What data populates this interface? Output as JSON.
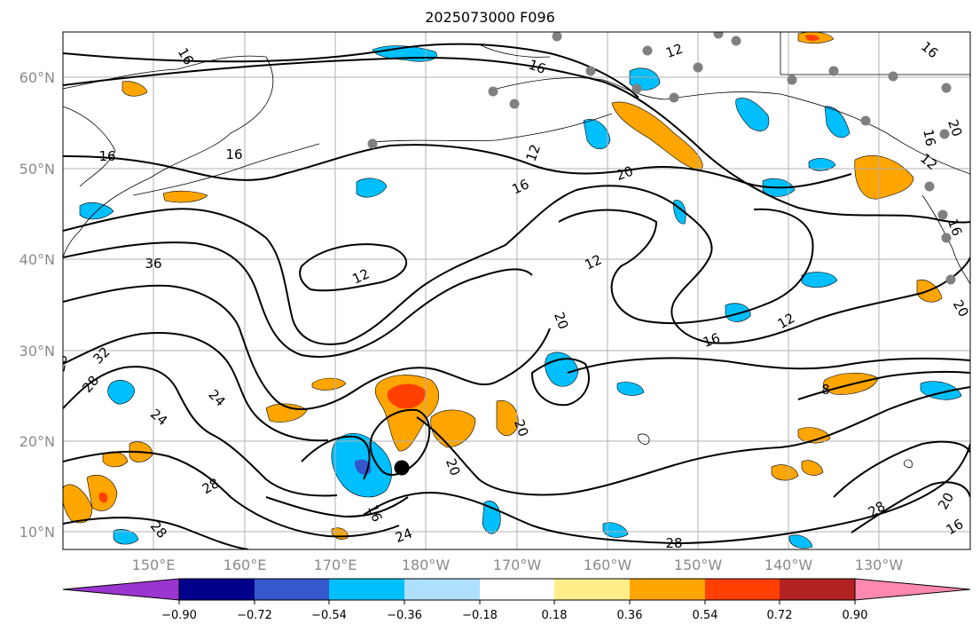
{
  "title": "2025073000 F096",
  "axes": {
    "lat_labels": [
      "60°N",
      "50°N",
      "40°N",
      "30°N",
      "20°N",
      "10°N"
    ],
    "lon_labels": [
      "150°E",
      "160°E",
      "170°E",
      "180°W",
      "170°W",
      "160°W",
      "150°W",
      "140°W",
      "130°W"
    ]
  },
  "colorbar": {
    "ticks": [
      "−0.90",
      "−0.72",
      "−0.54",
      "−0.36",
      "−0.18",
      "0.18",
      "0.36",
      "0.54",
      "0.72",
      "0.90"
    ],
    "colors": [
      "#9a35cf",
      "#00008b",
      "#3558cc",
      "#00bfff",
      "#aee0fb",
      "#ffffff",
      "#ffee8a",
      "#ffa500",
      "#ff4000",
      "#b22222",
      "#ff88b0"
    ]
  },
  "contour_labels": [
    "16",
    "16",
    "16",
    "12",
    "16",
    "20",
    "12",
    "16",
    "16",
    "20",
    "16",
    "12",
    "36",
    "12",
    "20",
    "16",
    "12",
    "32",
    "28",
    "24",
    "24",
    "28",
    "8",
    "28",
    "20",
    "20",
    "20",
    "28",
    "28",
    "20",
    "16",
    "24",
    "16",
    "12",
    "16",
    "28"
  ],
  "markers": {
    "storm_center": "black-dot",
    "stations": "gray-dots"
  }
}
